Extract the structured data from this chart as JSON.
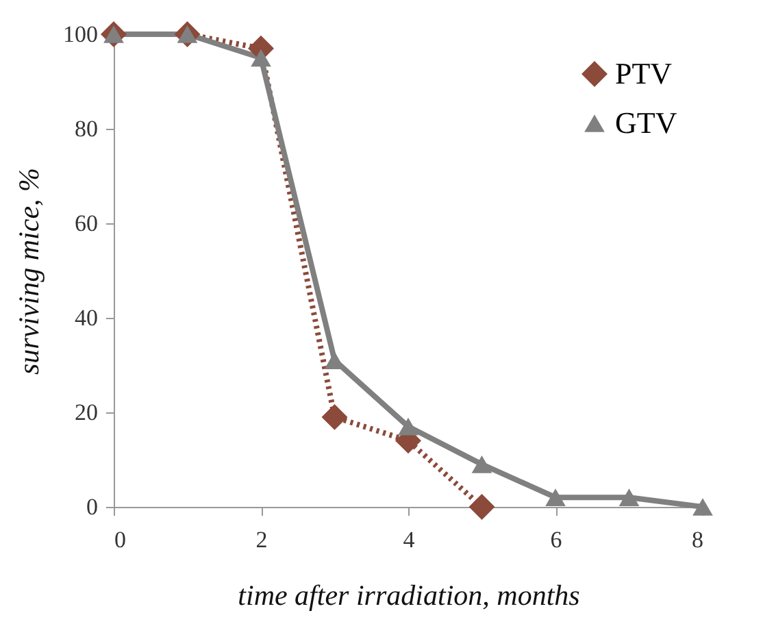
{
  "chart_data": {
    "type": "line",
    "xlabel": "time after irradiation, months",
    "ylabel": "surviving mice, %",
    "xlim": [
      0,
      8
    ],
    "xticks": [
      0,
      2,
      4,
      6,
      8
    ],
    "ylim": [
      0,
      100
    ],
    "yticks": [
      0,
      20,
      40,
      60,
      80,
      100
    ],
    "grid": false,
    "legend": "top right",
    "series": [
      {
        "name": "PTV",
        "color": "#8b4a3a",
        "marker": "diamond",
        "line_style": "dotted",
        "x": [
          0,
          1,
          2,
          3,
          4,
          5
        ],
        "values": [
          100,
          100,
          97,
          19,
          14,
          0
        ]
      },
      {
        "name": "GTV",
        "color": "#808080",
        "marker": "triangle",
        "line_style": "solid",
        "x": [
          0,
          1,
          2,
          3,
          4,
          5,
          6,
          7,
          8
        ],
        "values": [
          100,
          100,
          95,
          31,
          17,
          9,
          2,
          2,
          0
        ]
      }
    ]
  }
}
